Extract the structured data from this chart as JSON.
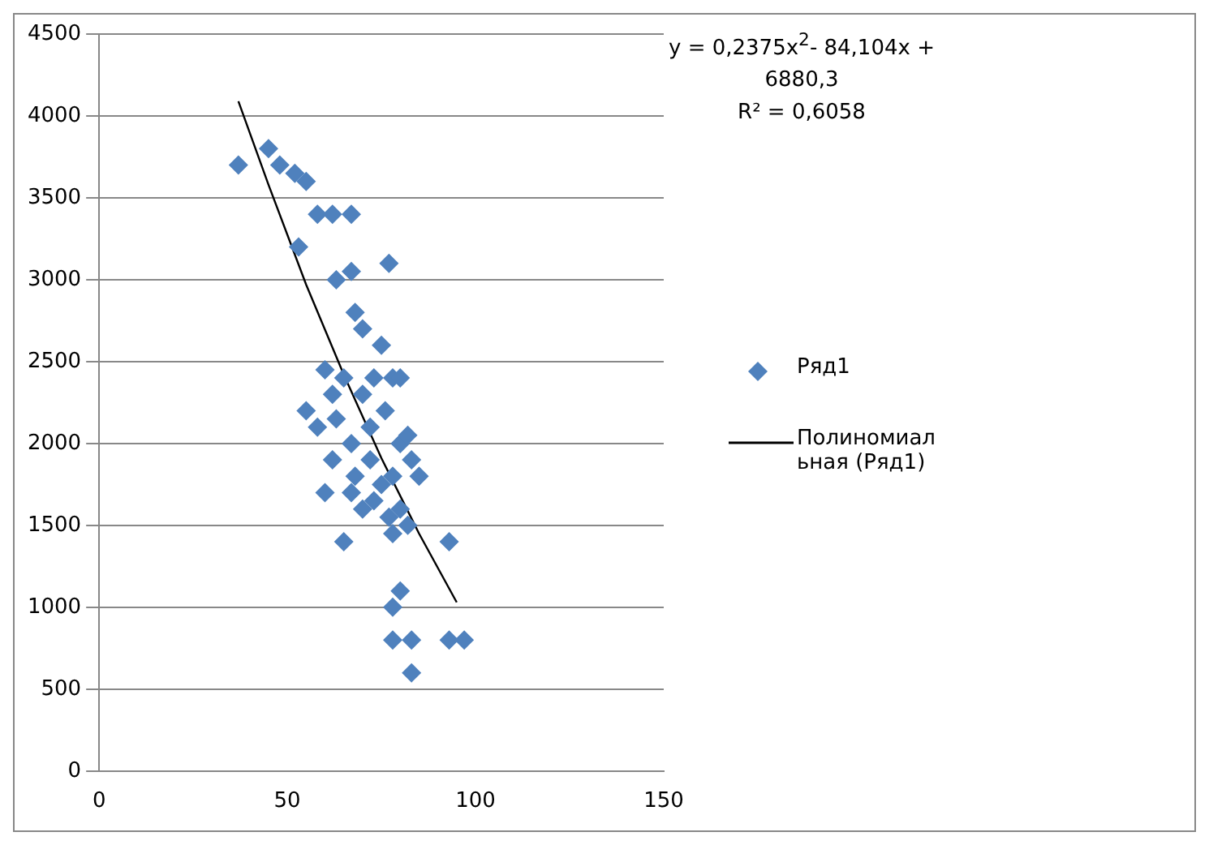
{
  "chart_data": {
    "type": "scatter",
    "xlim": [
      0,
      150
    ],
    "xticks": [
      0,
      50,
      100,
      150
    ],
    "ylim": [
      0,
      4500
    ],
    "yticks": [
      0,
      500,
      1000,
      1500,
      2000,
      2500,
      3000,
      3500,
      4000,
      4500
    ],
    "grid": "y",
    "legend": "right",
    "marker": "diamond",
    "annotations": [
      "y = 0,2375x$^{2}$- 84,104x + 6880,3",
      "R² = 0,6058"
    ],
    "series": [
      {
        "name": "Ряд1",
        "type": "scatter",
        "color": "#4f81bd",
        "x": [
          37,
          45,
          48,
          52,
          55,
          53,
          58,
          62,
          67,
          63,
          67,
          68,
          70,
          77,
          75,
          60,
          62,
          65,
          70,
          73,
          78,
          80,
          55,
          58,
          63,
          67,
          72,
          76,
          80,
          82,
          62,
          68,
          72,
          75,
          78,
          83,
          85,
          60,
          67,
          70,
          73,
          77,
          80,
          65,
          78,
          82,
          93,
          80,
          78,
          78,
          83,
          83,
          93,
          97
        ],
        "values": [
          3700,
          3800,
          3700,
          3650,
          3600,
          3200,
          3400,
          3400,
          3400,
          3000,
          3050,
          2800,
          2700,
          3100,
          2600,
          2450,
          2300,
          2400,
          2300,
          2400,
          2400,
          2400,
          2200,
          2100,
          2150,
          2000,
          2100,
          2200,
          2000,
          2050,
          1900,
          1800,
          1900,
          1750,
          1800,
          1900,
          1800,
          1700,
          1700,
          1600,
          1650,
          1550,
          1600,
          1400,
          1450,
          1500,
          1400,
          1100,
          1000,
          800,
          800,
          600,
          800,
          800
        ]
      },
      {
        "name": "Полиномиальная (Ряд1)",
        "type": "line",
        "color": "#000000",
        "marker": "none",
        "x": [
          37,
          45,
          55,
          65,
          75,
          85,
          95
        ],
        "values": [
          4090,
          3580,
          2970,
          2420,
          1910,
          1450,
          1030
        ]
      }
    ]
  }
}
